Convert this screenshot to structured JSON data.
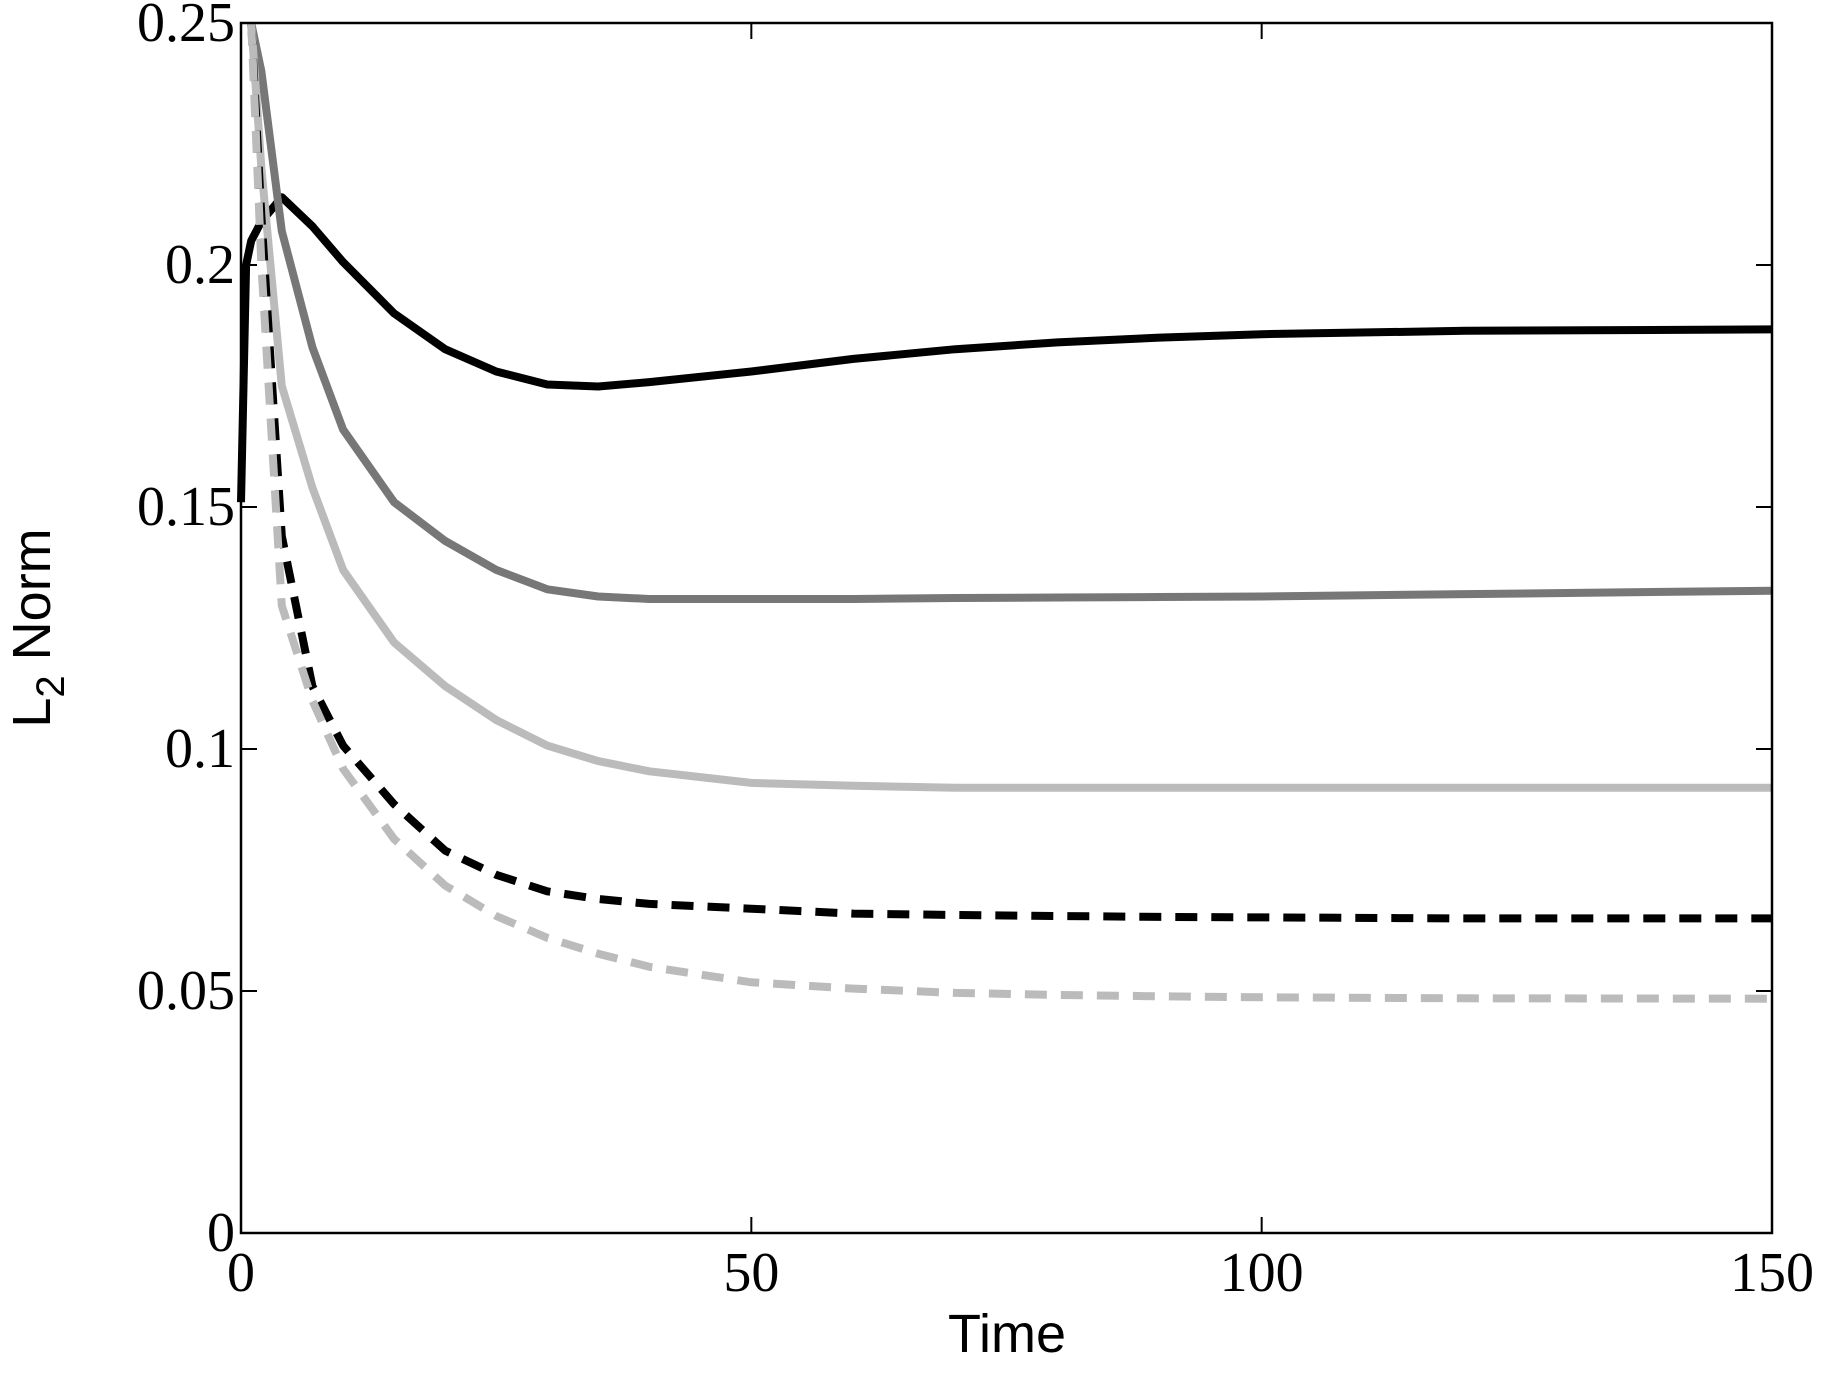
{
  "chart_data": {
    "type": "line",
    "xlabel": "Time",
    "ylabel": [
      "L",
      "2",
      " Norm"
    ],
    "x": [
      0,
      0.5,
      1,
      2,
      4,
      7,
      10,
      15,
      20,
      25,
      30,
      35,
      40,
      50,
      60,
      70,
      80,
      90,
      100,
      120,
      150
    ],
    "series": [
      {
        "color": "#000000",
        "style": "solid",
        "values": [
          0.151,
          0.2,
          0.205,
          0.209,
          0.214,
          0.208,
          0.2006,
          0.19,
          0.1826,
          0.178,
          0.1753,
          0.1749,
          0.1758,
          0.178,
          0.1806,
          0.1826,
          0.184,
          0.185,
          0.1857,
          0.1864,
          0.1867
        ]
      },
      {
        "color": "#777777",
        "style": "solid",
        "values": [
          null,
          null,
          0.25,
          0.24,
          0.207,
          0.183,
          0.166,
          0.151,
          0.143,
          0.137,
          0.133,
          0.1315,
          0.131,
          0.131,
          0.131,
          0.1312,
          0.1313,
          0.1314,
          0.1315,
          0.132,
          0.1327
        ]
      },
      {
        "color": "#bbbbbb",
        "style": "solid",
        "values": [
          null,
          null,
          0.25,
          0.22,
          0.175,
          0.154,
          0.137,
          0.122,
          0.113,
          0.106,
          0.1007,
          0.0975,
          0.0954,
          0.093,
          0.0924,
          0.092,
          0.092,
          0.092,
          0.092,
          0.092,
          0.092
        ]
      },
      {
        "color": "#000000",
        "style": "dashed",
        "values": [
          null,
          null,
          0.25,
          0.21,
          0.144,
          0.113,
          0.1007,
          0.0886,
          0.079,
          0.074,
          0.0706,
          0.069,
          0.068,
          0.067,
          0.066,
          0.0657,
          0.0655,
          0.0653,
          0.0652,
          0.065,
          0.065
        ]
      },
      {
        "color": "#bbbbbb",
        "style": "dashed",
        "values": [
          null,
          null,
          0.25,
          0.2,
          0.1296,
          0.11,
          0.0959,
          0.0814,
          0.0718,
          0.0655,
          0.061,
          0.0577,
          0.055,
          0.0518,
          0.0505,
          0.0496,
          0.0492,
          0.0489,
          0.0487,
          0.0485,
          0.0484
        ]
      }
    ],
    "xlim": [
      0,
      150
    ],
    "xticks": [
      0,
      50,
      100,
      150
    ],
    "ylim": [
      0,
      0.25
    ],
    "yticks": [
      0,
      0.05,
      0.1,
      0.15,
      0.2,
      0.25
    ],
    "grid": false
  }
}
